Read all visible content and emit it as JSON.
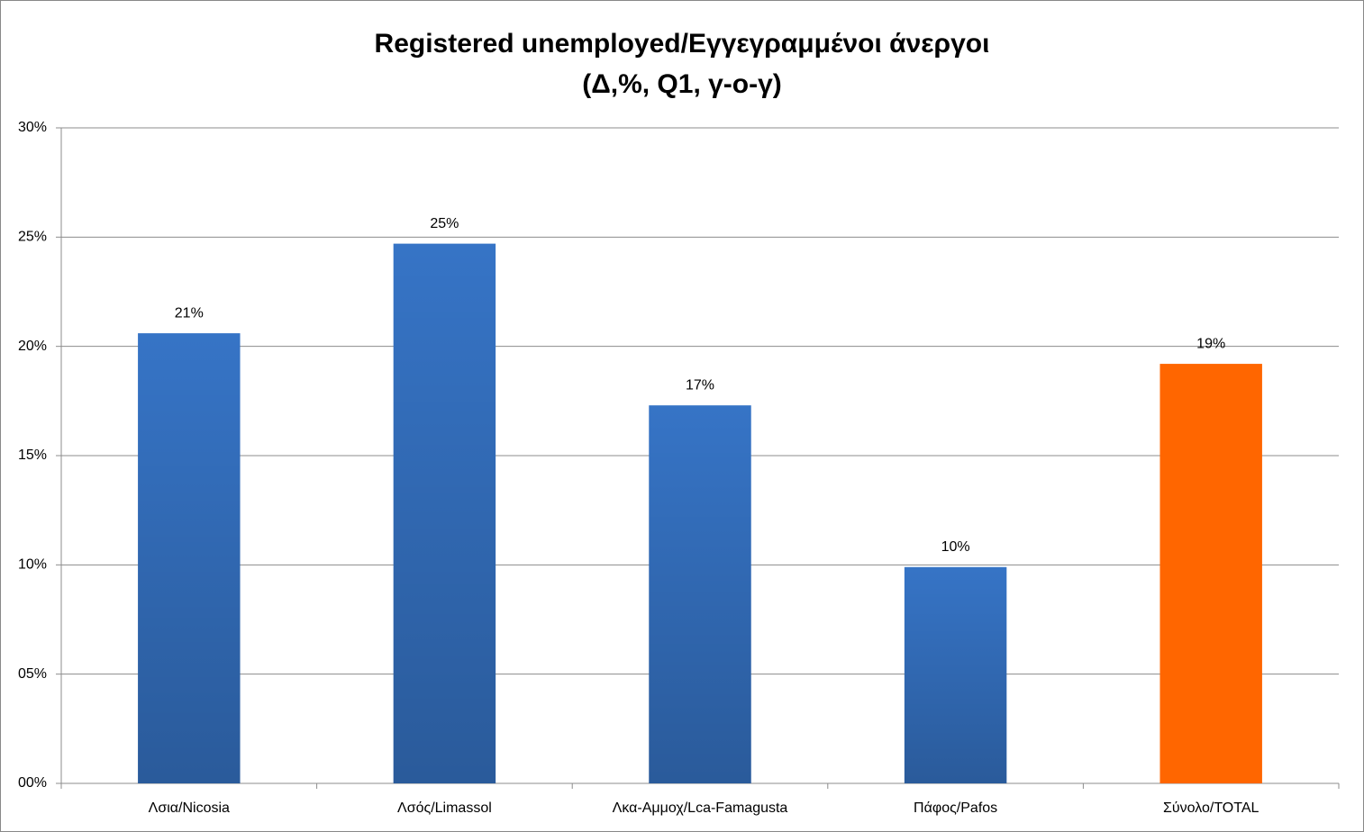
{
  "chart_data": {
    "type": "bar",
    "title": "Registered unemployed/Εγγεγραμμένοι άνεργοι",
    "subtitle": "(Δ,%, Q1, γ-ο-γ)",
    "categories": [
      "Λσια/Nicosia",
      "Λσός/Limassol",
      "Λκα-Αμμοχ/Lca-Famagusta",
      "Πάφος/Pafos",
      "Σύνολο/TOTAL"
    ],
    "values": [
      20.6,
      24.7,
      17.3,
      9.9,
      19.2
    ],
    "value_labels": [
      "21%",
      "25%",
      "17%",
      "10%",
      "19%"
    ],
    "colors": [
      "#3674c6",
      "#3674c6",
      "#3674c6",
      "#3674c6",
      "#ff6600"
    ],
    "ylim": [
      0,
      30
    ],
    "yticks": [
      {
        "value": 0,
        "label": "00%"
      },
      {
        "value": 5,
        "label": "05%"
      },
      {
        "value": 10,
        "label": "10%"
      },
      {
        "value": 15,
        "label": "15%"
      },
      {
        "value": 20,
        "label": "20%"
      },
      {
        "value": 25,
        "label": "25%"
      },
      {
        "value": 30,
        "label": "30%"
      }
    ],
    "grid": true
  }
}
